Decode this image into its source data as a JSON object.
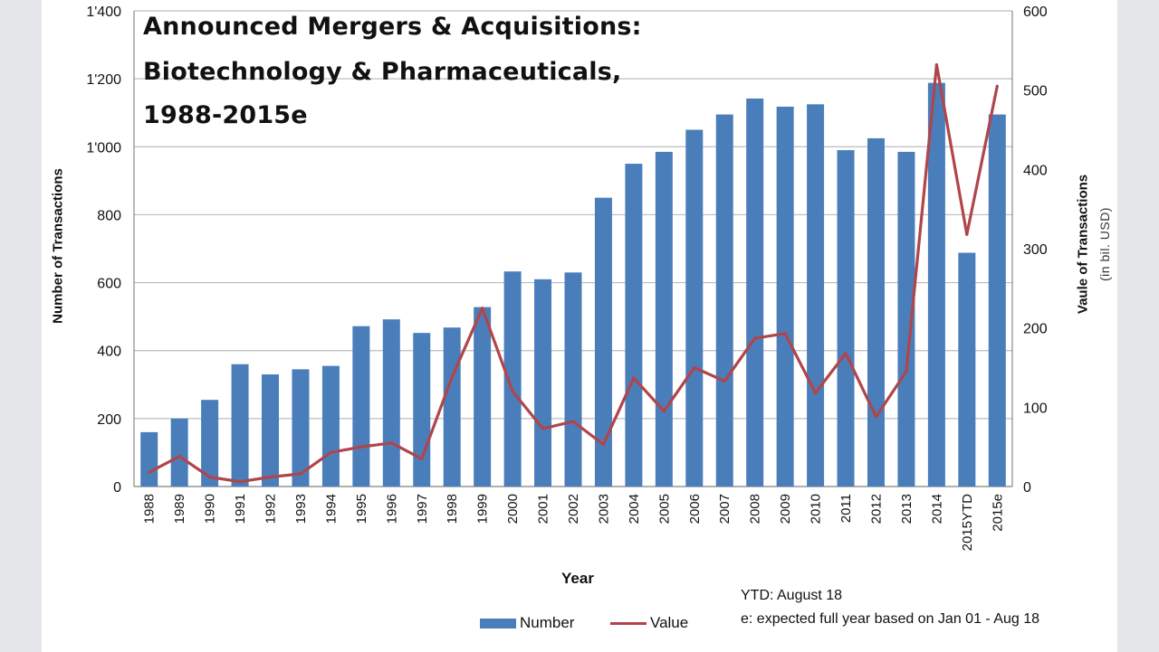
{
  "chart_data": {
    "type": "bar",
    "title": [
      "Announced Mergers & Acquisitions:",
      "Biotechnology & Pharmaceuticals,",
      "1988-2015e"
    ],
    "xlabel": "Year",
    "ylabel_left": "Number of Transactions",
    "ylabel_right": "Vaule of Transactions",
    "ylabel_right_sub": "(in bil. USD)",
    "categories": [
      "1988",
      "1989",
      "1990",
      "1991",
      "1992",
      "1993",
      "1994",
      "1995",
      "1996",
      "1997",
      "1998",
      "1999",
      "2000",
      "2001",
      "2002",
      "2003",
      "2004",
      "2005",
      "2006",
      "2007",
      "2008",
      "2009",
      "2010",
      "2011",
      "2012",
      "2013",
      "2014",
      "2015YTD",
      "2015e"
    ],
    "left_axis": {
      "min": 0,
      "max": 1400,
      "ticks": [
        0,
        200,
        400,
        600,
        800,
        1000,
        1200,
        1400
      ],
      "tick_labels": [
        "0",
        "200",
        "400",
        "600",
        "800",
        "1'000",
        "1'200",
        "1'400"
      ]
    },
    "right_axis": {
      "min": 0,
      "max": 600,
      "ticks": [
        0,
        100,
        200,
        300,
        400,
        500,
        600
      ],
      "tick_labels": [
        "0",
        "100",
        "200",
        "300",
        "400",
        "500",
        "600"
      ]
    },
    "series": [
      {
        "name": "Number",
        "type": "bar",
        "axis": "left",
        "color": "#4a7ebb",
        "values": [
          160,
          200,
          255,
          360,
          330,
          345,
          355,
          472,
          492,
          452,
          468,
          528,
          633,
          610,
          630,
          850,
          950,
          985,
          1050,
          1095,
          1142,
          1118,
          1125,
          990,
          1025,
          985,
          1188,
          688,
          1095
        ]
      },
      {
        "name": "Value",
        "type": "line",
        "axis": "right",
        "color": "#b0454a",
        "values": [
          18,
          38,
          12,
          6,
          12,
          16,
          43,
          50,
          55,
          35,
          138,
          225,
          120,
          73,
          82,
          53,
          137,
          95,
          150,
          133,
          187,
          193,
          118,
          168,
          88,
          145,
          532,
          318,
          505
        ]
      }
    ],
    "grid": true,
    "legend_position": "bottom"
  },
  "notes": [
    "YTD: August 18",
    "e: expected full year based on Jan 01 - Aug 18"
  ]
}
